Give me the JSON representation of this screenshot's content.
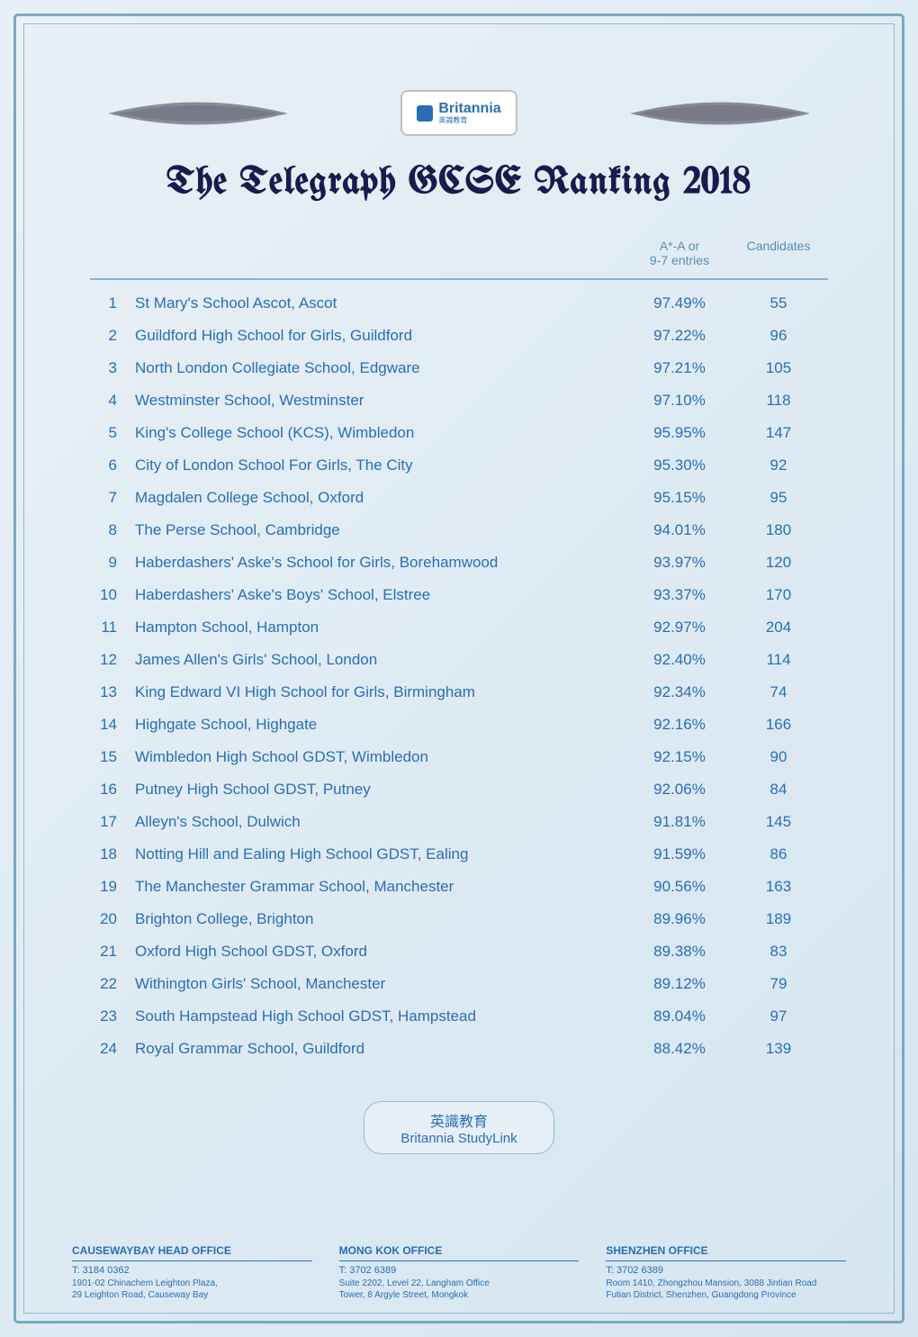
{
  "logo": {
    "brand": "Britannia",
    "subtitle": "英識教育"
  },
  "title": "The Telegraph GCSE Ranking 2018",
  "table": {
    "headers": {
      "entries": "A*-A or\n9-7 entries",
      "candidates": "Candidates"
    },
    "rows": [
      {
        "rank": "1",
        "school": "St Mary's School Ascot, Ascot",
        "entries": "97.49%",
        "candidates": "55"
      },
      {
        "rank": "2",
        "school": "Guildford High School for Girls, Guildford",
        "entries": "97.22%",
        "candidates": "96"
      },
      {
        "rank": "3",
        "school": "North London Collegiate School, Edgware",
        "entries": "97.21%",
        "candidates": "105"
      },
      {
        "rank": "4",
        "school": "Westminster School, Westminster",
        "entries": "97.10%",
        "candidates": "118"
      },
      {
        "rank": "5",
        "school": "King's College School (KCS), Wimbledon",
        "entries": "95.95%",
        "candidates": "147"
      },
      {
        "rank": "6",
        "school": "City of London School For Girls, The City",
        "entries": "95.30%",
        "candidates": "92"
      },
      {
        "rank": "7",
        "school": "Magdalen College School, Oxford",
        "entries": "95.15%",
        "candidates": "95"
      },
      {
        "rank": "8",
        "school": "The Perse School, Cambridge",
        "entries": "94.01%",
        "candidates": "180"
      },
      {
        "rank": "9",
        "school": "Haberdashers' Aske's School for Girls, Borehamwood",
        "entries": "93.97%",
        "candidates": "120"
      },
      {
        "rank": "10",
        "school": "Haberdashers' Aske's Boys' School, Elstree",
        "entries": "93.37%",
        "candidates": "170"
      },
      {
        "rank": "11",
        "school": "Hampton School, Hampton",
        "entries": "92.97%",
        "candidates": "204"
      },
      {
        "rank": "12",
        "school": "James Allen's Girls' School, London",
        "entries": "92.40%",
        "candidates": "114"
      },
      {
        "rank": "13",
        "school": "King Edward VI High School for Girls, Birmingham",
        "entries": "92.34%",
        "candidates": "74"
      },
      {
        "rank": "14",
        "school": "Highgate School, Highgate",
        "entries": "92.16%",
        "candidates": "166"
      },
      {
        "rank": "15",
        "school": "Wimbledon High School GDST, Wimbledon",
        "entries": "92.15%",
        "candidates": "90"
      },
      {
        "rank": "16",
        "school": "Putney High School GDST, Putney",
        "entries": "92.06%",
        "candidates": "84"
      },
      {
        "rank": "17",
        "school": "Alleyn's School, Dulwich",
        "entries": "91.81%",
        "candidates": "145"
      },
      {
        "rank": "18",
        "school": "Notting Hill and Ealing High School GDST, Ealing",
        "entries": "91.59%",
        "candidates": "86"
      },
      {
        "rank": "19",
        "school": "The Manchester Grammar School, Manchester",
        "entries": "90.56%",
        "candidates": "163"
      },
      {
        "rank": "20",
        "school": "Brighton College, Brighton",
        "entries": "89.96%",
        "candidates": "189"
      },
      {
        "rank": "21",
        "school": "Oxford High School GDST, Oxford",
        "entries": "89.38%",
        "candidates": "83"
      },
      {
        "rank": "22",
        "school": "Withington Girls' School, Manchester",
        "entries": "89.12%",
        "candidates": "79"
      },
      {
        "rank": "23",
        "school": "South Hampstead High School GDST, Hampstead",
        "entries": "89.04%",
        "candidates": "97"
      },
      {
        "rank": "24",
        "school": "Royal Grammar School, Guildford",
        "entries": "88.42%",
        "candidates": "139"
      }
    ]
  },
  "footerBadge": {
    "text1": "英識教育",
    "text2": "Britannia StudyLink"
  },
  "offices": [
    {
      "title": "CAUSEWAYBAY HEAD OFFICE",
      "phone": "T: 3184 0362",
      "address": "1901-02 Chinachem Leighton Plaza,\n29 Leighton Road, Causeway Bay"
    },
    {
      "title": "MONG KOK OFFICE",
      "phone": "T: 3702 6389",
      "address": "Suite 2202, Level 22, Langham Office\nTower, 8 Argyle Street, Mongkok"
    },
    {
      "title": "SHENZHEN OFFICE",
      "phone": "T: 3702 6389",
      "address": "Room 1410, Zhongzhou Mansion, 3088 Jintian Road\nFutian District, Shenzhen, Guangdong Province"
    }
  ],
  "colors": {
    "primary": "#2a6eb5",
    "border": "#7ba8c4",
    "headerText": "#5a8db0",
    "background": "#e8f0f5"
  }
}
